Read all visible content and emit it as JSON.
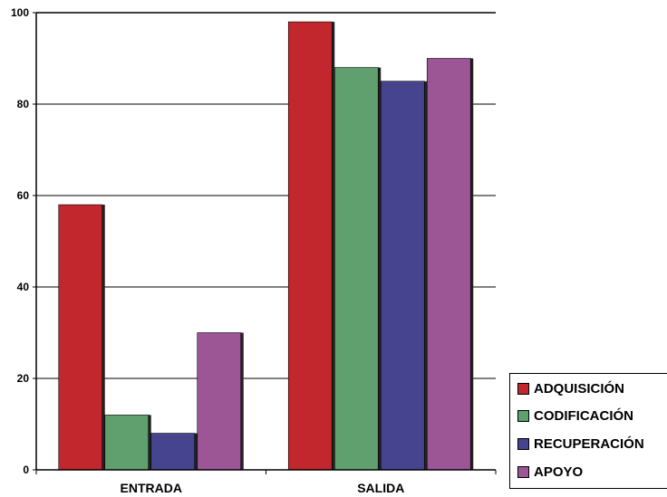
{
  "chart_data": {
    "type": "bar",
    "categories": [
      "ENTRADA",
      "SALIDA"
    ],
    "series": [
      {
        "name": "ADQUISICIÓN",
        "values": [
          58,
          98
        ],
        "color": "#C1272D"
      },
      {
        "name": "CODIFICACIÓN",
        "values": [
          12,
          88
        ],
        "color": "#5FA06E"
      },
      {
        "name": "RECUPERACIÓN",
        "values": [
          8,
          85
        ],
        "color": "#46448F"
      },
      {
        "name": "APOYO",
        "values": [
          30,
          90
        ],
        "color": "#9C5595"
      }
    ],
    "y_ticks": [
      "0",
      "20",
      "40",
      "60",
      "80",
      "100"
    ],
    "ylim": [
      0,
      100
    ],
    "grid": true,
    "legend_position": "bottom-right",
    "title": "",
    "xlabel": "",
    "ylabel": ""
  }
}
